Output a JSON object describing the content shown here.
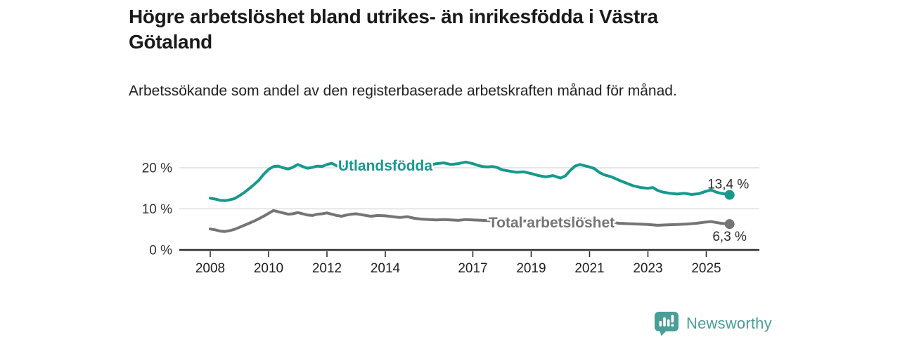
{
  "title": "Högre arbetslöshet bland utrikes- än inrikesfödda i Västra Götaland",
  "subtitle": "Arbetssökande som andel av den registerbaserade arbetskraften månad för månad.",
  "footer": {
    "brand": "Newsworthy"
  },
  "colors": {
    "accent_teal": "#17998d",
    "series_gray": "#757575",
    "grid": "#d8d8d8",
    "axis": "#2d2d2d",
    "tick_text": "#333333",
    "value_text": "#2b2b2b",
    "logo_teal": "#4a9e98"
  },
  "chart_data": {
    "type": "line",
    "title": "Högre arbetslöshet bland utrikes- än inrikesfödda i Västra Götaland",
    "subtitle": "Arbetssökande som andel av den registerbaserade arbetskraften månad för månad.",
    "xlabel": "",
    "ylabel": "",
    "grid": "horizontal",
    "legend_position": "inline-labels",
    "xlim": [
      2006.94,
      2026.82
    ],
    "ylim": [
      0,
      24.1
    ],
    "x_ticks": [
      2008,
      2010,
      2012,
      2014,
      2017,
      2019,
      2021,
      2023,
      2025
    ],
    "y_ticks": [
      {
        "value": 0,
        "label": "0 %"
      },
      {
        "value": 10,
        "label": "10 %"
      },
      {
        "value": 20,
        "label": "20 %"
      }
    ],
    "series": [
      {
        "name": "Utlandsfödda",
        "color": "#17998d",
        "end_label": "13,4 %",
        "label_pos": [
          2014.0,
          20.5
        ],
        "end_label_side": "above",
        "points": [
          [
            2008.0,
            12.6
          ],
          [
            2008.17,
            12.4
          ],
          [
            2008.33,
            12.1
          ],
          [
            2008.5,
            12.0
          ],
          [
            2008.67,
            12.2
          ],
          [
            2008.83,
            12.5
          ],
          [
            2009.0,
            13.2
          ],
          [
            2009.17,
            14.0
          ],
          [
            2009.33,
            14.9
          ],
          [
            2009.5,
            15.9
          ],
          [
            2009.67,
            17.0
          ],
          [
            2009.83,
            18.4
          ],
          [
            2010.0,
            19.6
          ],
          [
            2010.17,
            20.3
          ],
          [
            2010.33,
            20.4
          ],
          [
            2010.5,
            20.0
          ],
          [
            2010.67,
            19.7
          ],
          [
            2010.83,
            20.1
          ],
          [
            2011.0,
            20.8
          ],
          [
            2011.17,
            20.3
          ],
          [
            2011.33,
            19.9
          ],
          [
            2011.5,
            20.1
          ],
          [
            2011.67,
            20.4
          ],
          [
            2011.83,
            20.3
          ],
          [
            2012.0,
            20.8
          ],
          [
            2012.17,
            21.1
          ],
          [
            2012.33,
            20.5
          ],
          [
            2012.5,
            20.3
          ],
          [
            2012.67,
            20.2
          ],
          [
            2012.83,
            20.4
          ],
          [
            2013.0,
            20.6
          ],
          [
            2013.25,
            20.3
          ],
          [
            2013.5,
            20.2
          ],
          [
            2013.75,
            20.5
          ],
          [
            2014.0,
            20.6
          ],
          [
            2014.25,
            20.3
          ],
          [
            2014.5,
            20.2
          ],
          [
            2014.75,
            20.4
          ],
          [
            2015.0,
            20.6
          ],
          [
            2015.25,
            20.8
          ],
          [
            2015.5,
            20.6
          ],
          [
            2015.75,
            21.0
          ],
          [
            2016.0,
            21.2
          ],
          [
            2016.25,
            20.8
          ],
          [
            2016.5,
            21.0
          ],
          [
            2016.75,
            21.4
          ],
          [
            2017.0,
            21.0
          ],
          [
            2017.17,
            20.6
          ],
          [
            2017.33,
            20.3
          ],
          [
            2017.5,
            20.2
          ],
          [
            2017.67,
            20.3
          ],
          [
            2017.83,
            20.1
          ],
          [
            2018.0,
            19.5
          ],
          [
            2018.25,
            19.2
          ],
          [
            2018.5,
            18.9
          ],
          [
            2018.75,
            19.0
          ],
          [
            2019.0,
            18.6
          ],
          [
            2019.25,
            18.1
          ],
          [
            2019.5,
            17.8
          ],
          [
            2019.75,
            18.1
          ],
          [
            2020.0,
            17.5
          ],
          [
            2020.17,
            18.0
          ],
          [
            2020.33,
            19.3
          ],
          [
            2020.5,
            20.4
          ],
          [
            2020.67,
            20.8
          ],
          [
            2020.83,
            20.5
          ],
          [
            2021.0,
            20.2
          ],
          [
            2021.17,
            19.8
          ],
          [
            2021.33,
            18.9
          ],
          [
            2021.5,
            18.3
          ],
          [
            2021.75,
            17.8
          ],
          [
            2022.0,
            17.0
          ],
          [
            2022.25,
            16.3
          ],
          [
            2022.5,
            15.6
          ],
          [
            2022.75,
            15.2
          ],
          [
            2023.0,
            15.0
          ],
          [
            2023.17,
            15.2
          ],
          [
            2023.33,
            14.5
          ],
          [
            2023.5,
            14.1
          ],
          [
            2023.75,
            13.8
          ],
          [
            2024.0,
            13.6
          ],
          [
            2024.25,
            13.8
          ],
          [
            2024.5,
            13.5
          ],
          [
            2024.75,
            13.7
          ],
          [
            2025.0,
            14.3
          ],
          [
            2025.17,
            14.6
          ],
          [
            2025.33,
            14.1
          ],
          [
            2025.5,
            13.8
          ],
          [
            2025.67,
            13.6
          ],
          [
            2025.8,
            13.4
          ]
        ]
      },
      {
        "name": "Total arbetslöshet",
        "color": "#757575",
        "end_label": "6,3 %",
        "label_pos": [
          2019.7,
          6.7
        ],
        "end_label_side": "below",
        "points": [
          [
            2008.0,
            5.1
          ],
          [
            2008.17,
            4.9
          ],
          [
            2008.33,
            4.6
          ],
          [
            2008.5,
            4.5
          ],
          [
            2008.67,
            4.7
          ],
          [
            2008.83,
            5.0
          ],
          [
            2009.0,
            5.5
          ],
          [
            2009.17,
            6.0
          ],
          [
            2009.33,
            6.5
          ],
          [
            2009.5,
            7.0
          ],
          [
            2009.67,
            7.6
          ],
          [
            2009.83,
            8.2
          ],
          [
            2010.0,
            8.9
          ],
          [
            2010.17,
            9.6
          ],
          [
            2010.33,
            9.3
          ],
          [
            2010.5,
            9.0
          ],
          [
            2010.67,
            8.7
          ],
          [
            2010.83,
            8.8
          ],
          [
            2011.0,
            9.1
          ],
          [
            2011.17,
            8.8
          ],
          [
            2011.33,
            8.5
          ],
          [
            2011.5,
            8.4
          ],
          [
            2011.67,
            8.7
          ],
          [
            2011.83,
            8.8
          ],
          [
            2012.0,
            9.0
          ],
          [
            2012.17,
            8.7
          ],
          [
            2012.33,
            8.4
          ],
          [
            2012.5,
            8.2
          ],
          [
            2012.67,
            8.5
          ],
          [
            2012.83,
            8.7
          ],
          [
            2013.0,
            8.8
          ],
          [
            2013.25,
            8.5
          ],
          [
            2013.5,
            8.2
          ],
          [
            2013.75,
            8.4
          ],
          [
            2014.0,
            8.3
          ],
          [
            2014.25,
            8.1
          ],
          [
            2014.5,
            7.9
          ],
          [
            2014.75,
            8.1
          ],
          [
            2015.0,
            7.7
          ],
          [
            2015.25,
            7.5
          ],
          [
            2015.5,
            7.4
          ],
          [
            2015.75,
            7.3
          ],
          [
            2016.0,
            7.4
          ],
          [
            2016.25,
            7.3
          ],
          [
            2016.5,
            7.2
          ],
          [
            2016.75,
            7.4
          ],
          [
            2017.0,
            7.3
          ],
          [
            2017.33,
            7.2
          ],
          [
            2017.67,
            7.1
          ],
          [
            2018.0,
            7.0
          ],
          [
            2018.33,
            6.9
          ],
          [
            2018.67,
            7.0
          ],
          [
            2019.0,
            7.1
          ],
          [
            2019.33,
            7.0
          ],
          [
            2019.67,
            7.1
          ],
          [
            2020.0,
            7.0
          ],
          [
            2020.25,
            7.4
          ],
          [
            2020.5,
            7.8
          ],
          [
            2020.75,
            7.6
          ],
          [
            2021.0,
            7.4
          ],
          [
            2021.33,
            7.1
          ],
          [
            2021.67,
            6.8
          ],
          [
            2022.0,
            6.5
          ],
          [
            2022.33,
            6.4
          ],
          [
            2022.67,
            6.3
          ],
          [
            2023.0,
            6.2
          ],
          [
            2023.33,
            6.0
          ],
          [
            2023.67,
            6.1
          ],
          [
            2024.0,
            6.2
          ],
          [
            2024.33,
            6.3
          ],
          [
            2024.67,
            6.5
          ],
          [
            2025.0,
            6.8
          ],
          [
            2025.17,
            6.9
          ],
          [
            2025.33,
            6.7
          ],
          [
            2025.5,
            6.5
          ],
          [
            2025.67,
            6.4
          ],
          [
            2025.8,
            6.3
          ]
        ]
      }
    ]
  }
}
